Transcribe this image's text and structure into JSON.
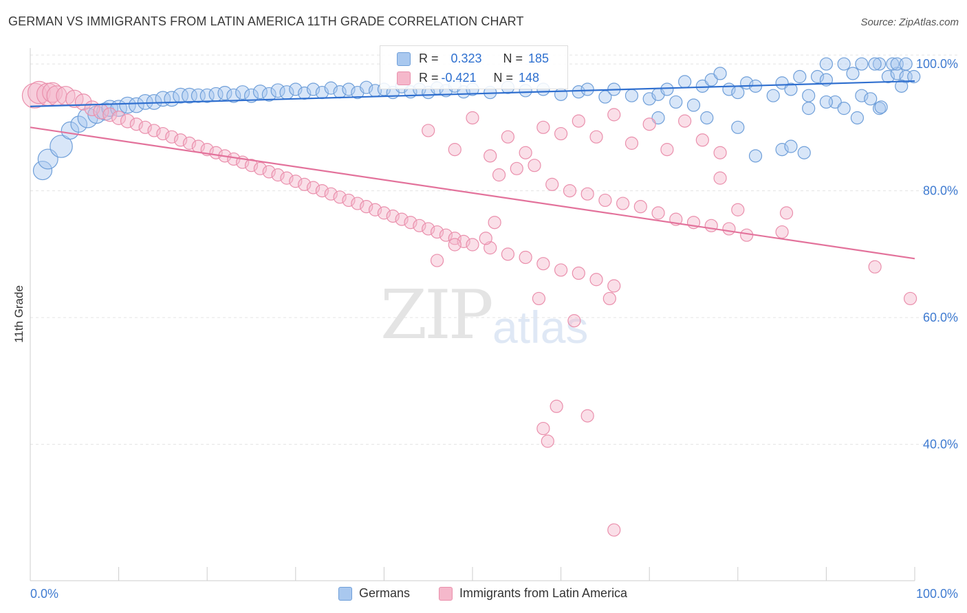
{
  "title": "GERMAN VS IMMIGRANTS FROM LATIN AMERICA 11TH GRADE CORRELATION CHART",
  "source": "Source: ZipAtlas.com",
  "watermark": {
    "zip": "ZIP",
    "atlas": "atlas"
  },
  "stats": {
    "row1": {
      "r_label": "R =",
      "r_value": "0.323",
      "n_label": "N =",
      "n_value": "185"
    },
    "row2": {
      "r_label": "R =",
      "r_value": "-0.421",
      "n_label": "N =",
      "n_value": "148"
    }
  },
  "legend": {
    "series1": "Germans",
    "series2": "Immigrants from Latin America"
  },
  "colors": {
    "blue_fill": "#a9c8ef",
    "blue_stroke": "#6f9fd9",
    "blue_line": "#2f6fcf",
    "pink_fill": "#f5b8cb",
    "pink_stroke": "#ea8fac",
    "pink_line": "#e3729b",
    "tick_label": "#3f7bd1",
    "grid": "#e3e3e3"
  },
  "chart_data": {
    "type": "scatter",
    "title": "GERMAN VS IMMIGRANTS FROM LATIN AMERICA 11TH GRADE CORRELATION CHART",
    "xlabel": "",
    "ylabel": "11th Grade",
    "xlim": [
      0,
      100
    ],
    "ylim": [
      18.5,
      102.5
    ],
    "x_tick_labels": [
      "0.0%",
      "100.0%"
    ],
    "y_ticks": [
      40,
      60,
      80,
      100
    ],
    "y_tick_labels": [
      "40.0%",
      "60.0%",
      "80.0%",
      "100.0%"
    ],
    "grid": true,
    "legend_position": "bottom",
    "series": [
      {
        "name": "Germans",
        "r": 0.323,
        "n": 185,
        "trend": {
          "x": [
            0,
            100
          ],
          "y": [
            93.3,
            97.3
          ]
        },
        "points": [
          [
            1.4,
            83.2,
            1.5
          ],
          [
            2.0,
            85.0,
            1.6
          ],
          [
            3.5,
            87.0,
            1.8
          ],
          [
            4.5,
            89.5,
            1.4
          ],
          [
            5.5,
            90.5,
            1.3
          ],
          [
            6.5,
            91.5,
            1.6
          ],
          [
            7.5,
            92.0,
            1.4
          ],
          [
            8.5,
            92.5,
            1.4
          ],
          [
            9.0,
            93.0,
            1.3
          ],
          [
            10.0,
            93.0,
            1.3
          ],
          [
            11.0,
            93.5,
            1.3
          ],
          [
            12.0,
            93.5,
            1.2
          ],
          [
            13.0,
            94.0,
            1.2
          ],
          [
            14.0,
            94.0,
            1.2
          ],
          [
            15.0,
            94.5,
            1.2
          ],
          [
            16.0,
            94.5,
            1.2
          ],
          [
            17.0,
            95.0,
            1.2
          ],
          [
            18.0,
            95.0,
            1.2
          ],
          [
            19.0,
            95.0,
            1.1
          ],
          [
            20.0,
            95.0,
            1.1
          ],
          [
            21.0,
            95.2,
            1.1
          ],
          [
            22.0,
            95.4,
            1.1
          ],
          [
            23.0,
            95.0,
            1.1
          ],
          [
            24.0,
            95.5,
            1.1
          ],
          [
            25.0,
            95.0,
            1.1
          ],
          [
            26.0,
            95.6,
            1.1
          ],
          [
            27.0,
            95.2,
            1.1
          ],
          [
            28.0,
            95.8,
            1.1
          ],
          [
            29.0,
            95.5,
            1.1
          ],
          [
            30.0,
            96.0,
            1.0
          ],
          [
            31.0,
            95.4,
            1.0
          ],
          [
            32.0,
            96.0,
            1.0
          ],
          [
            33.0,
            95.5,
            1.0
          ],
          [
            34.0,
            96.2,
            1.0
          ],
          [
            35.0,
            95.6,
            1.0
          ],
          [
            36.0,
            96.0,
            1.0
          ],
          [
            37.0,
            95.5,
            1.0
          ],
          [
            38.0,
            96.3,
            1.0
          ],
          [
            39.0,
            95.8,
            1.0
          ],
          [
            40.0,
            96.0,
            1.0
          ],
          [
            41.0,
            95.5,
            1.0
          ],
          [
            42.0,
            96.4,
            1.0
          ],
          [
            43.0,
            95.6,
            1.0
          ],
          [
            44.0,
            96.0,
            1.0
          ],
          [
            45.0,
            95.5,
            1.0
          ],
          [
            46.0,
            96.2,
            1.0
          ],
          [
            47.0,
            95.8,
            1.0
          ],
          [
            48.0,
            96.5,
            1.0
          ],
          [
            49.0,
            95.6,
            1.0
          ],
          [
            50.0,
            96.0,
            1.0
          ],
          [
            52.0,
            95.5,
            1.0
          ],
          [
            54.0,
            96.3,
            1.0
          ],
          [
            56.0,
            95.8,
            1.0
          ],
          [
            58.0,
            96.0,
            1.0
          ],
          [
            60.0,
            95.2,
            1.0
          ],
          [
            62.0,
            95.6,
            1.0
          ],
          [
            63.0,
            96.0,
            1.0
          ],
          [
            65.0,
            94.8,
            1.0
          ],
          [
            66.0,
            96.0,
            1.0
          ],
          [
            68.0,
            95.0,
            1.0
          ],
          [
            70.0,
            94.5,
            1.0
          ],
          [
            71.0,
            95.2,
            1.0
          ],
          [
            72.0,
            96.0,
            1.0
          ],
          [
            73.0,
            94.0,
            1.0
          ],
          [
            74.0,
            97.2,
            1.0
          ],
          [
            75.0,
            93.5,
            1.0
          ],
          [
            76.0,
            96.5,
            1.0
          ],
          [
            77.0,
            97.5,
            1.0
          ],
          [
            78.0,
            98.5,
            1.0
          ],
          [
            79.0,
            96.0,
            1.0
          ],
          [
            80.0,
            95.5,
            1.0
          ],
          [
            81.0,
            97.0,
            1.0
          ],
          [
            82.0,
            96.5,
            1.0
          ],
          [
            84.0,
            95.0,
            1.0
          ],
          [
            85.0,
            97.0,
            1.0
          ],
          [
            86.0,
            96.0,
            1.0
          ],
          [
            87.0,
            98.0,
            1.0
          ],
          [
            88.0,
            95.0,
            1.0
          ],
          [
            89.0,
            98.0,
            1.0
          ],
          [
            90.0,
            97.5,
            1.0
          ],
          [
            91.0,
            94.0,
            1.0
          ],
          [
            92.0,
            93.0,
            1.0
          ],
          [
            93.0,
            98.5,
            1.0
          ],
          [
            94.0,
            95.0,
            1.0
          ],
          [
            95.0,
            94.5,
            1.0
          ],
          [
            96.0,
            93.0,
            1.0
          ],
          [
            97.0,
            98.0,
            1.0
          ],
          [
            98.0,
            98.5,
            1.0
          ],
          [
            99.0,
            98.0,
            1.0
          ],
          [
            99.9,
            98.0,
            1.0
          ],
          [
            71.0,
            91.5,
            1.0
          ],
          [
            76.5,
            91.5,
            1.0
          ],
          [
            80.0,
            90.0,
            1.0
          ],
          [
            82.0,
            85.5,
            1.0
          ],
          [
            85.0,
            86.5,
            1.0
          ],
          [
            86.0,
            87.0,
            1.0
          ],
          [
            87.5,
            86.0,
            1.0
          ],
          [
            88.0,
            93.0,
            1.0
          ],
          [
            90.0,
            94.0,
            1.0
          ],
          [
            93.5,
            91.5,
            1.0
          ],
          [
            96.2,
            93.2,
            1.0
          ],
          [
            98.5,
            96.5,
            1.0
          ],
          [
            96.0,
            100.0,
            1.0
          ],
          [
            97.5,
            100.0,
            1.0
          ],
          [
            98.0,
            100.0,
            1.0
          ],
          [
            99.0,
            100.0,
            1.0
          ],
          [
            90.0,
            100.0,
            1.0
          ],
          [
            92.0,
            100.0,
            1.0
          ],
          [
            94.0,
            100.0,
            1.0
          ],
          [
            95.5,
            100.0,
            1.0
          ]
        ]
      },
      {
        "name": "Immigrants from Latin America",
        "r": -0.421,
        "n": 148,
        "trend": {
          "x": [
            0,
            100
          ],
          "y": [
            90.0,
            69.3
          ]
        },
        "points": [
          [
            0.5,
            95.0,
            2.0
          ],
          [
            1.0,
            95.5,
            1.8
          ],
          [
            2.0,
            95.2,
            1.8
          ],
          [
            2.5,
            95.5,
            1.6
          ],
          [
            3.0,
            95.0,
            1.6
          ],
          [
            4.0,
            95.0,
            1.5
          ],
          [
            5.0,
            94.5,
            1.4
          ],
          [
            6.0,
            94.0,
            1.3
          ],
          [
            7.0,
            93.0,
            1.2
          ],
          [
            8.0,
            92.5,
            1.2
          ],
          [
            9.0,
            92.0,
            1.1
          ],
          [
            10.0,
            91.5,
            1.1
          ],
          [
            11.0,
            91.0,
            1.1
          ],
          [
            12.0,
            90.5,
            1.0
          ],
          [
            13.0,
            90.0,
            1.0
          ],
          [
            14.0,
            89.5,
            1.0
          ],
          [
            15.0,
            89.0,
            1.0
          ],
          [
            16.0,
            88.5,
            1.0
          ],
          [
            17.0,
            88.0,
            1.0
          ],
          [
            18.0,
            87.5,
            1.0
          ],
          [
            19.0,
            87.0,
            1.0
          ],
          [
            20.0,
            86.5,
            1.0
          ],
          [
            21.0,
            86.0,
            1.0
          ],
          [
            22.0,
            85.5,
            1.0
          ],
          [
            23.0,
            85.0,
            1.0
          ],
          [
            24.0,
            84.5,
            1.0
          ],
          [
            25.0,
            84.0,
            1.0
          ],
          [
            26.0,
            83.5,
            1.0
          ],
          [
            27.0,
            83.0,
            1.0
          ],
          [
            28.0,
            82.5,
            1.0
          ],
          [
            29.0,
            82.0,
            1.0
          ],
          [
            30.0,
            81.5,
            1.0
          ],
          [
            31.0,
            81.0,
            1.0
          ],
          [
            32.0,
            80.5,
            1.0
          ],
          [
            33.0,
            80.0,
            1.0
          ],
          [
            34.0,
            79.5,
            1.0
          ],
          [
            35.0,
            79.0,
            1.0
          ],
          [
            36.0,
            78.5,
            1.0
          ],
          [
            37.0,
            78.0,
            1.0
          ],
          [
            38.0,
            77.5,
            1.0
          ],
          [
            39.0,
            77.0,
            1.0
          ],
          [
            40.0,
            76.5,
            1.0
          ],
          [
            41.0,
            76.0,
            1.0
          ],
          [
            42.0,
            75.5,
            1.0
          ],
          [
            43.0,
            75.0,
            1.0
          ],
          [
            44.0,
            74.5,
            1.0
          ],
          [
            45.0,
            74.0,
            1.0
          ],
          [
            46.0,
            73.5,
            1.0
          ],
          [
            47.0,
            73.0,
            1.0
          ],
          [
            48.0,
            72.5,
            1.0
          ],
          [
            49.0,
            72.0,
            1.0
          ],
          [
            50.0,
            71.5,
            1.0
          ],
          [
            52.0,
            71.0,
            1.0
          ],
          [
            54.0,
            70.0,
            1.0
          ],
          [
            56.0,
            69.5,
            1.0
          ],
          [
            58.0,
            68.5,
            1.0
          ],
          [
            60.0,
            67.5,
            1.0
          ],
          [
            62.0,
            67.0,
            1.0
          ],
          [
            64.0,
            66.0,
            1.0
          ],
          [
            66.0,
            65.0,
            1.0
          ],
          [
            45.0,
            89.5,
            1.0
          ],
          [
            48.0,
            86.5,
            1.0
          ],
          [
            50.0,
            91.5,
            1.0
          ],
          [
            52.0,
            85.5,
            1.0
          ],
          [
            54.0,
            88.5,
            1.0
          ],
          [
            56.0,
            86.0,
            1.0
          ],
          [
            58.0,
            90.0,
            1.0
          ],
          [
            60.0,
            89.0,
            1.0
          ],
          [
            62.0,
            91.0,
            1.0
          ],
          [
            64.0,
            88.5,
            1.0
          ],
          [
            66.0,
            92.0,
            1.0
          ],
          [
            68.0,
            87.5,
            1.0
          ],
          [
            70.0,
            90.5,
            1.0
          ],
          [
            72.0,
            86.5,
            1.0
          ],
          [
            74.0,
            91.0,
            1.0
          ],
          [
            76.0,
            88.0,
            1.0
          ],
          [
            78.0,
            86.0,
            1.0
          ],
          [
            53.0,
            82.5,
            1.0
          ],
          [
            55.0,
            83.5,
            1.0
          ],
          [
            57.0,
            84.0,
            1.0
          ],
          [
            59.0,
            81.0,
            1.0
          ],
          [
            61.0,
            80.0,
            1.0
          ],
          [
            63.0,
            79.5,
            1.0
          ],
          [
            65.0,
            78.5,
            1.0
          ],
          [
            67.0,
            78.0,
            1.0
          ],
          [
            69.0,
            77.5,
            1.0
          ],
          [
            71.0,
            76.5,
            1.0
          ],
          [
            73.0,
            75.5,
            1.0
          ],
          [
            75.0,
            75.0,
            1.0
          ],
          [
            77.0,
            74.5,
            1.0
          ],
          [
            79.0,
            74.0,
            1.0
          ],
          [
            81.0,
            73.0,
            1.0
          ],
          [
            61.5,
            59.5,
            1.0
          ],
          [
            65.5,
            63.0,
            1.0
          ],
          [
            57.5,
            63.0,
            1.0
          ],
          [
            58.0,
            42.5,
            1.0
          ],
          [
            59.5,
            46.0,
            1.0
          ],
          [
            58.5,
            40.5,
            1.0
          ],
          [
            63.0,
            44.5,
            1.0
          ],
          [
            66.0,
            26.5,
            1.0
          ],
          [
            95.5,
            68.0,
            1.0
          ],
          [
            99.5,
            63.0,
            1.0
          ],
          [
            78.0,
            82.0,
            1.0
          ],
          [
            80.0,
            77.0,
            1.0
          ],
          [
            85.0,
            73.5,
            1.0
          ],
          [
            85.5,
            76.5,
            1.0
          ],
          [
            46.0,
            69.0,
            1.0
          ],
          [
            48.0,
            71.5,
            1.0
          ],
          [
            51.5,
            72.5,
            1.0
          ],
          [
            52.5,
            75.0,
            1.0
          ]
        ]
      }
    ]
  }
}
